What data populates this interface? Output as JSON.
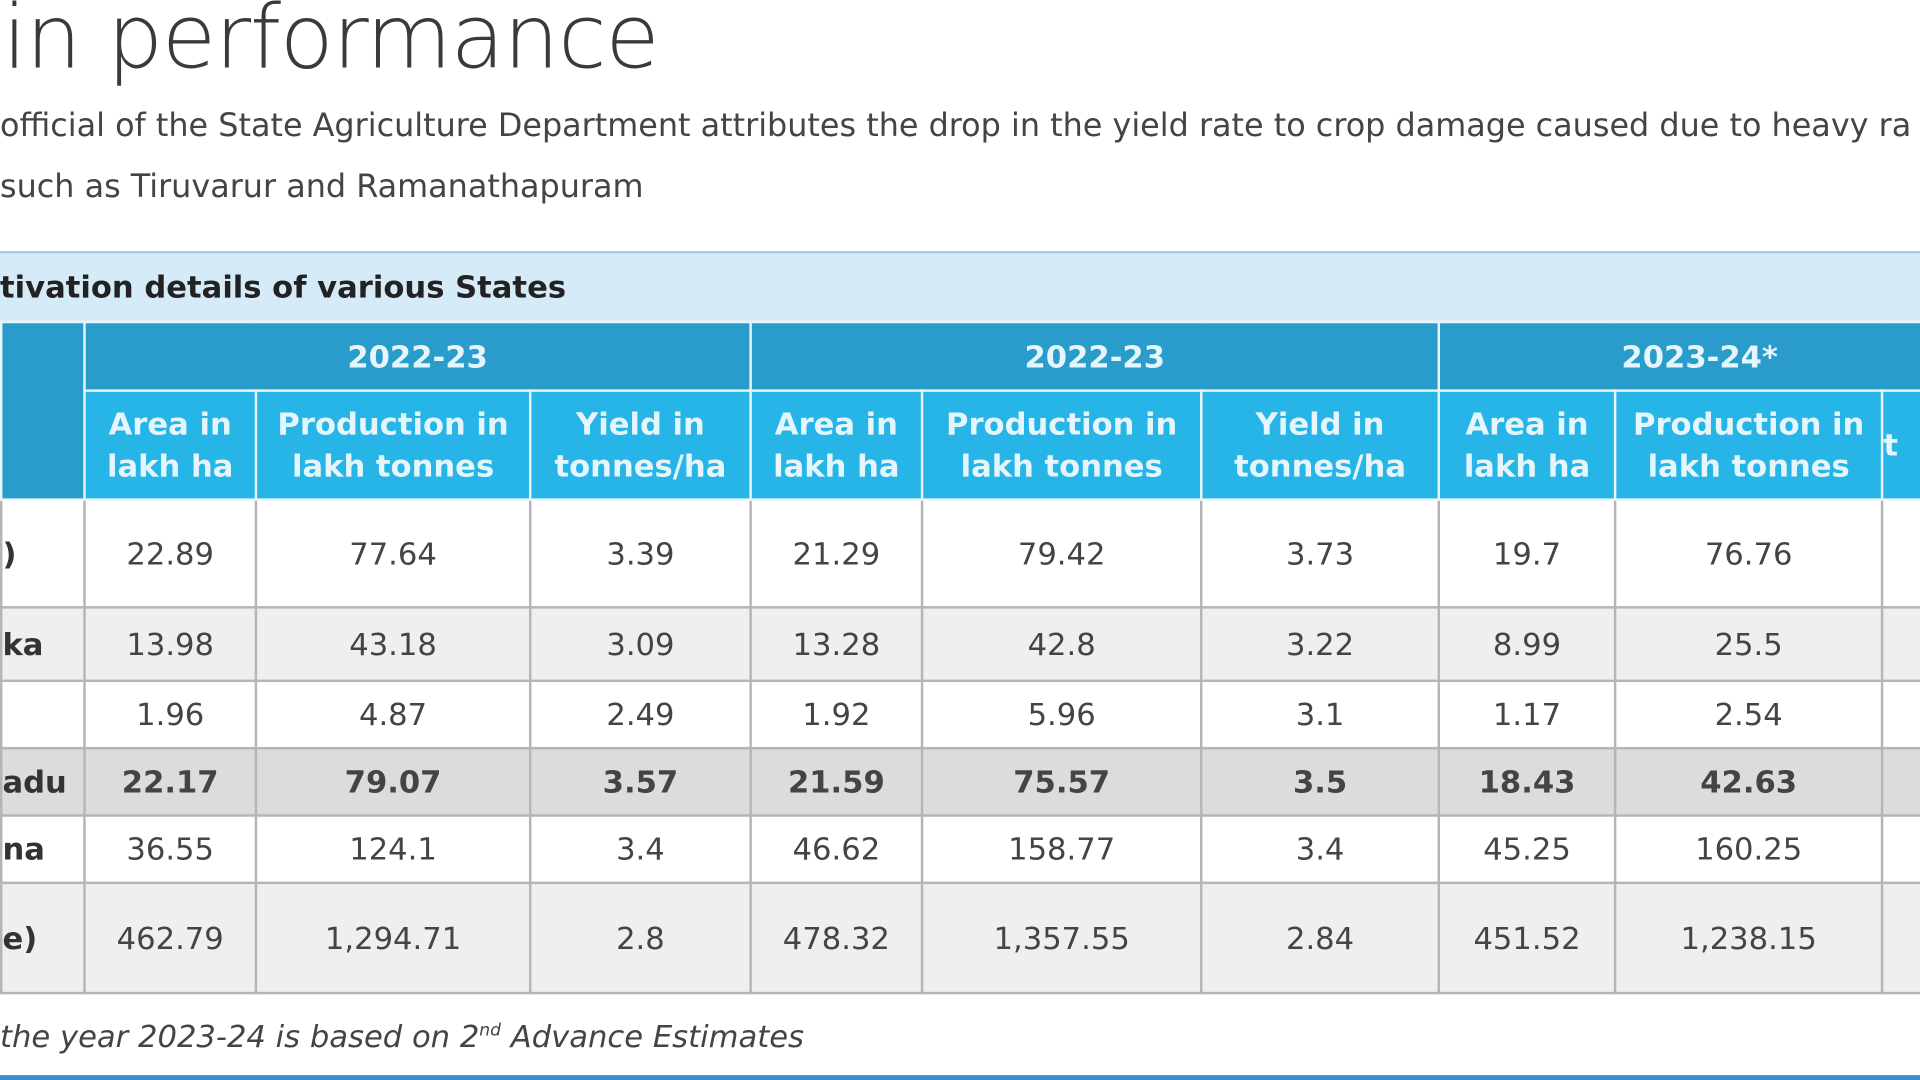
{
  "header": {
    "title": "in performance",
    "paragraph": [
      "official of the State Agriculture Department attributes the drop in the yield rate to crop damage caused due to heavy ra",
      "such as Tiruvarur and Ramanathapuram"
    ]
  },
  "table": {
    "caption": "tivation details of various States",
    "year_groups": [
      "2022-23",
      "2022-23",
      "2023-24*"
    ],
    "subheaders": [
      "Area in lakh ha",
      "Production in lakh tonnes",
      "Yield in tonnes/ha",
      "Area in lakh ha",
      "Production in lakh tonnes",
      "Yield in tonnes/ha",
      "Area in lakh ha",
      "Production in lakh tonnes",
      "t"
    ],
    "rows": [
      {
        "label": ")",
        "cells": [
          "22.89",
          "77.64",
          "3.39",
          "21.29",
          "79.42",
          "3.73",
          "19.7",
          "76.76"
        ]
      },
      {
        "label": "ka",
        "cells": [
          "13.98",
          "43.18",
          "3.09",
          "13.28",
          "42.8",
          "3.22",
          "8.99",
          "25.5"
        ]
      },
      {
        "label": null,
        "cells": [
          "1.96",
          "4.87",
          "2.49",
          "1.92",
          "5.96",
          "3.1",
          "1.17",
          "2.54"
        ]
      },
      {
        "label": "adu",
        "cells": [
          "22.17",
          "79.07",
          "3.57",
          "21.59",
          "75.57",
          "3.5",
          "18.43",
          "42.63"
        ]
      },
      {
        "label": "na",
        "cells": [
          "36.55",
          "124.1",
          "3.4",
          "46.62",
          "158.77",
          "3.4",
          "45.25",
          "160.25"
        ]
      },
      {
        "label": "e)",
        "cells": [
          "462.79",
          "1,294.71",
          "2.8",
          "478.32",
          "1,357.55",
          "2.84",
          "451.52",
          "1,238.15"
        ]
      }
    ],
    "footnote": {
      "text": "the year 2023-24 is based on  2",
      "sup": "nd",
      "rest": " Advance Estimates"
    }
  }
}
